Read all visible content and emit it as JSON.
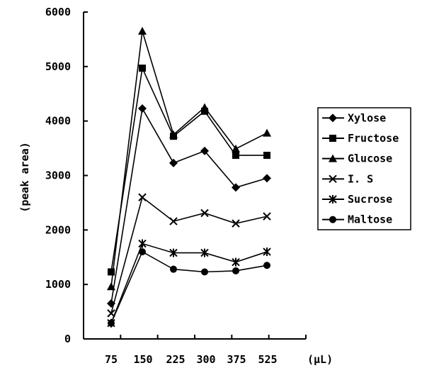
{
  "chart_data": {
    "type": "line",
    "title": "",
    "ylabel": "(peak area)",
    "xlabel": "",
    "x_unit": "(μL)",
    "categories": [
      "75",
      "150",
      "225",
      "300",
      "375",
      "525"
    ],
    "ylim": [
      0,
      6000
    ],
    "yticks": [
      "0",
      "1000",
      "2000",
      "3000",
      "4000",
      "5000",
      "6000"
    ],
    "grid": false,
    "legend_position": "right",
    "series": [
      {
        "name": "Xylose",
        "marker": "diamond",
        "values": [
          650,
          4230,
          3230,
          3450,
          2780,
          2950
        ]
      },
      {
        "name": "Fructose",
        "marker": "square",
        "values": [
          1230,
          4970,
          3720,
          4180,
          3370,
          3370
        ]
      },
      {
        "name": "Glucose",
        "marker": "triangle",
        "values": [
          960,
          5650,
          3750,
          4250,
          3490,
          3780
        ]
      },
      {
        "name": "I. S",
        "marker": "x",
        "values": [
          470,
          2600,
          2160,
          2310,
          2120,
          2250
        ]
      },
      {
        "name": "Sucrose",
        "marker": "star",
        "values": [
          290,
          1750,
          1580,
          1580,
          1410,
          1600
        ]
      },
      {
        "name": "Maltose",
        "marker": "circle",
        "values": [
          290,
          1600,
          1280,
          1230,
          1250,
          1350
        ]
      }
    ]
  }
}
